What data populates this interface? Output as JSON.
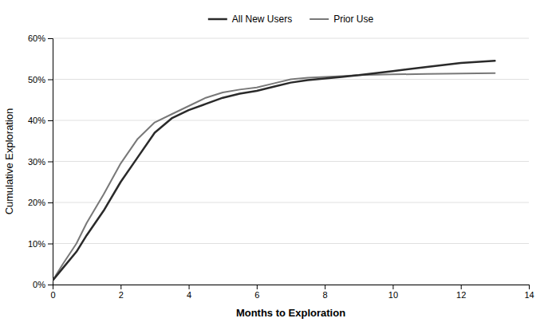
{
  "chart_data": {
    "type": "line",
    "xlabel": "Months  to Exploration",
    "ylabel": "Cumulative Exploration",
    "xlim": [
      0,
      14
    ],
    "ylim": [
      0,
      0.6
    ],
    "xticks": [
      0,
      2,
      4,
      6,
      8,
      10,
      12,
      14
    ],
    "yticks": [
      {
        "value": 0.0,
        "label": "0%"
      },
      {
        "value": 0.1,
        "label": "10%"
      },
      {
        "value": 0.2,
        "label": "20%"
      },
      {
        "value": 0.3,
        "label": "30%"
      },
      {
        "value": 0.4,
        "label": "40%"
      },
      {
        "value": 0.5,
        "label": "50%"
      },
      {
        "value": 0.6,
        "label": "60%"
      }
    ],
    "x": [
      0,
      0.3,
      0.7,
      1.0,
      1.5,
      2.0,
      2.5,
      3.0,
      3.5,
      4.0,
      4.5,
      5.0,
      5.5,
      6.0,
      6.5,
      7.0,
      7.5,
      8.0,
      8.5,
      9.0,
      9.5,
      10.0,
      11.0,
      12.0,
      13.0
    ],
    "series": [
      {
        "name": "All New Users",
        "color": "#2a2a2a",
        "values": [
          0.01,
          0.04,
          0.08,
          0.12,
          0.18,
          0.25,
          0.31,
          0.37,
          0.405,
          0.425,
          0.44,
          0.455,
          0.465,
          0.472,
          0.482,
          0.492,
          0.498,
          0.502,
          0.506,
          0.51,
          0.515,
          0.52,
          0.53,
          0.54,
          0.545
        ]
      },
      {
        "name": "Prior Use",
        "color": "#787878",
        "values": [
          0.01,
          0.05,
          0.1,
          0.15,
          0.22,
          0.295,
          0.355,
          0.395,
          0.415,
          0.435,
          0.455,
          0.468,
          0.475,
          0.48,
          0.49,
          0.5,
          0.504,
          0.506,
          0.508,
          0.51,
          0.511,
          0.512,
          0.513,
          0.514,
          0.515
        ]
      }
    ],
    "grid": true,
    "legend": "top"
  }
}
